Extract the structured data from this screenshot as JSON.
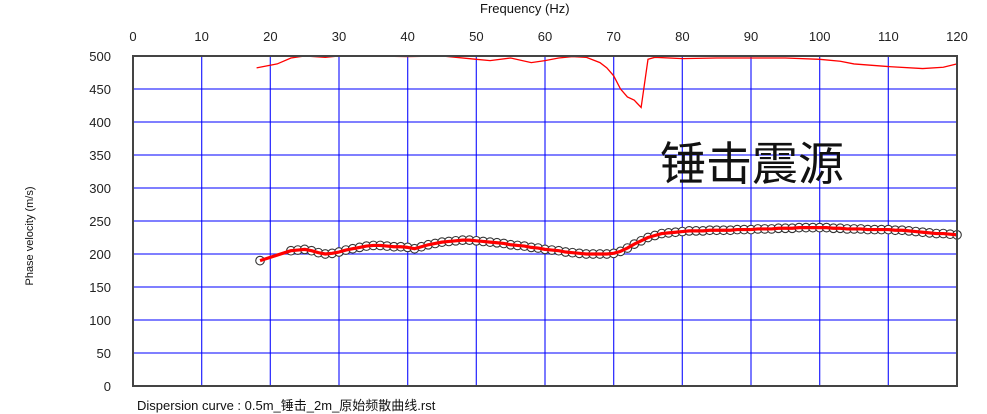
{
  "chart_data": {
    "type": "scatter",
    "title": "Frequency (Hz)",
    "xlabel": "Frequency (Hz)",
    "ylabel": "Phase velocity (m/s)",
    "xlim": [
      0,
      120
    ],
    "ylim": [
      0,
      500
    ],
    "xticks": [
      0,
      10,
      20,
      30,
      40,
      50,
      60,
      70,
      80,
      90,
      100,
      110,
      120
    ],
    "yticks": [
      0,
      50,
      100,
      150,
      200,
      250,
      300,
      350,
      400,
      450,
      500
    ],
    "grid": true,
    "grid_color": "#0000ff",
    "annotation": "锤击震源",
    "caption": "Dispersion curve : 0.5m_锤击_2m_原始频散曲线.rst",
    "dispersion_points": {
      "x": [
        18.5,
        23,
        24,
        25,
        26,
        27,
        28,
        29,
        30,
        31,
        32,
        33,
        34,
        35,
        36,
        37,
        38,
        39,
        40,
        41,
        42,
        43,
        44,
        45,
        46,
        47,
        48,
        49,
        50,
        51,
        52,
        53,
        54,
        55,
        56,
        57,
        58,
        59,
        60,
        61,
        62,
        63,
        64,
        65,
        66,
        67,
        68,
        69,
        70,
        71,
        72,
        73,
        74,
        75,
        76,
        77,
        78,
        79,
        80,
        81,
        82,
        83,
        84,
        85,
        86,
        87,
        88,
        89,
        90,
        91,
        92,
        93,
        94,
        95,
        96,
        97,
        98,
        99,
        100,
        101,
        102,
        103,
        104,
        105,
        106,
        107,
        108,
        109,
        110,
        111,
        112,
        113,
        114,
        115,
        116,
        117,
        118,
        119,
        120
      ],
      "y": [
        190,
        205,
        206,
        207,
        205,
        202,
        200,
        201,
        203,
        206,
        208,
        210,
        212,
        213,
        213,
        212,
        211,
        211,
        210,
        208,
        211,
        214,
        216,
        218,
        219,
        220,
        221,
        221,
        220,
        219,
        218,
        217,
        216,
        214,
        213,
        212,
        210,
        209,
        207,
        206,
        205,
        203,
        202,
        201,
        200,
        200,
        200,
        200,
        201,
        204,
        209,
        215,
        220,
        225,
        228,
        231,
        232,
        233,
        234,
        235,
        235,
        235,
        236,
        236,
        236,
        236,
        237,
        237,
        237,
        238,
        238,
        238,
        239,
        239,
        239,
        240,
        240,
        240,
        240,
        240,
        239,
        239,
        238,
        238,
        238,
        237,
        237,
        237,
        237,
        236,
        236,
        235,
        234,
        233,
        232,
        231,
        231,
        230,
        229
      ],
      "marker_color": "#ffffff",
      "line_color": "#ff0000"
    },
    "upper_curve": {
      "x": [
        18,
        21,
        23,
        25,
        28,
        30,
        35,
        40,
        45,
        50,
        52,
        55,
        58,
        60,
        62,
        64,
        66,
        68,
        69,
        70,
        71,
        72,
        73,
        74,
        75,
        76,
        80,
        85,
        90,
        95,
        100,
        103,
        105,
        110,
        115,
        118,
        120
      ],
      "y": [
        482,
        488,
        497,
        500,
        498,
        500,
        500,
        499,
        500,
        495,
        493,
        497,
        490,
        493,
        497,
        499,
        498,
        490,
        482,
        470,
        450,
        438,
        433,
        422,
        495,
        498,
        496,
        497,
        497,
        497,
        495,
        492,
        488,
        484,
        481,
        483,
        488
      ],
      "color": "#ff0000"
    }
  }
}
